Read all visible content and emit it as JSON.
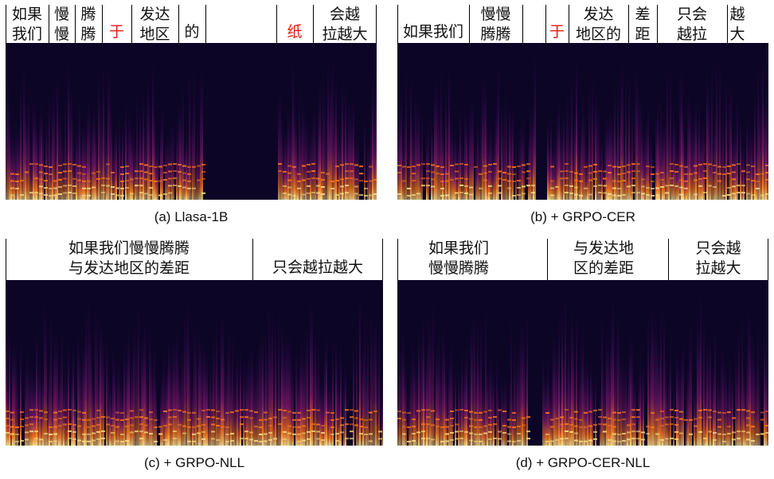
{
  "panels": [
    {
      "caption": "(a) Llasa-1B",
      "segments": [
        {
          "text": "如果\n我们",
          "highlight": false
        },
        {
          "text": "慢\n慢",
          "highlight": false
        },
        {
          "text": "腾\n腾",
          "highlight": false
        },
        {
          "text": "于",
          "highlight": true
        },
        {
          "text": "发达\n地区",
          "highlight": false
        },
        {
          "text": "的",
          "highlight": false
        },
        {
          "text": "",
          "highlight": false
        },
        {
          "text": "纸",
          "highlight": true
        },
        {
          "text": "会越\n拉越大",
          "highlight": false
        }
      ]
    },
    {
      "caption": "(b) + GRPO-CER",
      "segments": [
        {
          "text": "如果我们",
          "highlight": false
        },
        {
          "text": "慢慢\n腾腾",
          "highlight": false
        },
        {
          "text": "",
          "highlight": false
        },
        {
          "text": "于",
          "highlight": true
        },
        {
          "text": "发达\n地区的",
          "highlight": false
        },
        {
          "text": "差\n距",
          "highlight": false
        },
        {
          "text": "只会\n越拉",
          "highlight": false
        },
        {
          "text": "越\n大",
          "highlight": false
        }
      ]
    },
    {
      "caption": "(c) + GRPO-NLL",
      "segments": [
        {
          "text": "如果我们慢慢腾腾\n与发达地区的差距",
          "highlight": false
        },
        {
          "text": "只会越拉越大",
          "highlight": false
        }
      ]
    },
    {
      "caption": "(d) + GRPO-CER-NLL",
      "segments": [
        {
          "text": "如果我们\n慢慢腾腾",
          "highlight": false
        },
        {
          "text": "与发达地\n区的差距",
          "highlight": false
        },
        {
          "text": "只会越\n拉越大",
          "highlight": false
        }
      ]
    }
  ],
  "colors": {
    "highlight": "#e8190f",
    "text": "#111111",
    "spec_bg": "#0d0526",
    "spec_mid": "#8a1a6e",
    "spec_hot": "#ff7a1a",
    "spec_peak": "#ffe28a"
  }
}
